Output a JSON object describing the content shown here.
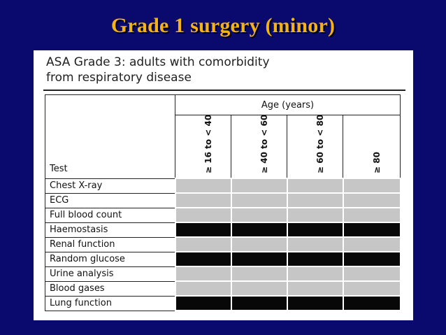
{
  "slide": {
    "title": "Grade 1 surgery (minor)",
    "background_color": "#0a0a6e",
    "title_color": "#f2b21a"
  },
  "panel": {
    "title_line1": "ASA Grade 3: adults with comorbidity",
    "title_line2": "from respiratory disease"
  },
  "table": {
    "test_header": "Test",
    "age_header": "Age (years)",
    "age_groups": [
      "≥ 16 to < 40",
      "≥ 40 to < 60",
      "≥ 60 to < 80",
      "≥ 80"
    ],
    "rows": [
      {
        "test": "Chest X-ray",
        "cells": [
          "grey",
          "grey",
          "grey",
          "grey"
        ]
      },
      {
        "test": "ECG",
        "cells": [
          "grey",
          "grey",
          "grey",
          "grey"
        ]
      },
      {
        "test": "Full blood count",
        "cells": [
          "grey",
          "grey",
          "grey",
          "grey"
        ]
      },
      {
        "test": "Haemostasis",
        "cells": [
          "black",
          "black",
          "black",
          "black"
        ]
      },
      {
        "test": "Renal function",
        "cells": [
          "grey",
          "grey",
          "grey",
          "grey"
        ]
      },
      {
        "test": "Random glucose",
        "cells": [
          "black",
          "black",
          "black",
          "black"
        ]
      },
      {
        "test": "Urine analysis",
        "cells": [
          "grey",
          "grey",
          "grey",
          "grey"
        ]
      },
      {
        "test": "Blood gases",
        "cells": [
          "grey",
          "grey",
          "grey",
          "grey"
        ]
      },
      {
        "test": "Lung function",
        "cells": [
          "black",
          "black",
          "black",
          "black"
        ]
      }
    ],
    "cell_colors": {
      "grey": "#c6c6c6",
      "black": "#080808"
    }
  }
}
